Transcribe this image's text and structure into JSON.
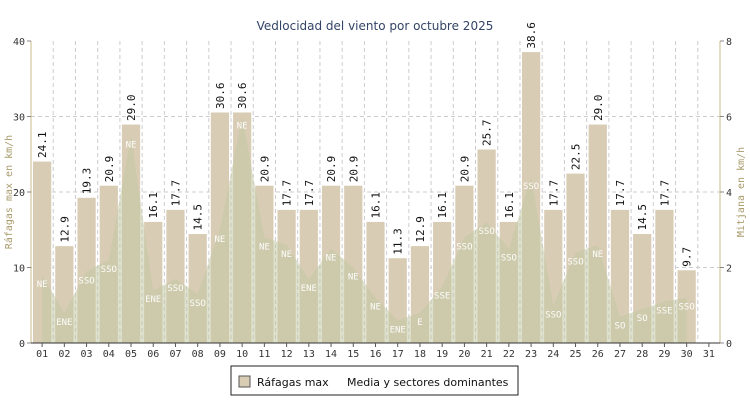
{
  "chart_data": {
    "type": "bar",
    "title": "Vedlocidad del viento por octubre 2025",
    "ylabel_left": "Ráfagas max en km/h",
    "ylabel_right": "Mitjana en km/h",
    "ylim_left": [
      0,
      40
    ],
    "ylim_right": [
      0,
      8
    ],
    "yticks_left": [
      "0",
      "10",
      "20",
      "30",
      "40"
    ],
    "yticks_right": [
      "0",
      "2",
      "4",
      "6",
      "8"
    ],
    "grid": true,
    "legend_position": "bottom-center",
    "categories": [
      "01",
      "02",
      "03",
      "04",
      "05",
      "06",
      "07",
      "08",
      "09",
      "10",
      "11",
      "12",
      "13",
      "14",
      "15",
      "16",
      "17",
      "18",
      "19",
      "20",
      "21",
      "22",
      "23",
      "24",
      "25",
      "26",
      "27",
      "28",
      "29",
      "30",
      "31"
    ],
    "series": [
      {
        "name": "Ráfagas max",
        "kind": "bar",
        "color": "#d9ccb5",
        "edge_color": "#ffffff",
        "values": [
          24.1,
          12.9,
          19.3,
          20.9,
          29.0,
          16.1,
          17.7,
          14.5,
          30.6,
          30.6,
          20.9,
          17.7,
          17.7,
          20.9,
          20.9,
          16.1,
          11.3,
          12.9,
          16.1,
          20.9,
          25.7,
          16.1,
          38.6,
          17.7,
          22.5,
          29.0,
          17.7,
          14.5,
          17.7,
          9.7,
          null
        ],
        "labels": [
          "24.1",
          "12.9",
          "19.3",
          "20.9",
          "29.0",
          "16.1",
          "17.7",
          "14.5",
          "30.6",
          "30.6",
          "20.9",
          "17.7",
          "17.7",
          "20.9",
          "20.9",
          "16.1",
          "11.3",
          "12.9",
          "16.1",
          "20.9",
          "25.7",
          "16.1",
          "38.6",
          "17.7",
          "22.5",
          "29.0",
          "17.7",
          "14.5",
          "17.7",
          "9.7",
          ""
        ]
      },
      {
        "name": "Media y sectores dominantes",
        "kind": "area",
        "axis": "right",
        "color": "#c3c8a4",
        "values": [
          1.8,
          0.8,
          1.9,
          2.2,
          5.5,
          1.4,
          1.7,
          1.3,
          3.0,
          6.0,
          2.8,
          2.6,
          1.7,
          2.5,
          2.0,
          1.2,
          0.6,
          0.8,
          1.5,
          2.8,
          3.2,
          2.5,
          4.4,
          1.0,
          2.4,
          2.6,
          0.7,
          0.9,
          1.1,
          1.2,
          null
        ],
        "sectors": [
          "NE",
          "ENE",
          "SSO",
          "SSO",
          "NE",
          "ENE",
          "SSO",
          "SSO",
          "NE",
          "NE",
          "NE",
          "NE",
          "ENE",
          "NE",
          "NE",
          "NE",
          "ENE",
          "E",
          "SSE",
          "SSO",
          "SSO",
          "SSO",
          "SSO",
          "SSO",
          "SSO",
          "NE",
          "SO",
          "SO",
          "SSE",
          "SSO",
          ""
        ]
      }
    ]
  }
}
